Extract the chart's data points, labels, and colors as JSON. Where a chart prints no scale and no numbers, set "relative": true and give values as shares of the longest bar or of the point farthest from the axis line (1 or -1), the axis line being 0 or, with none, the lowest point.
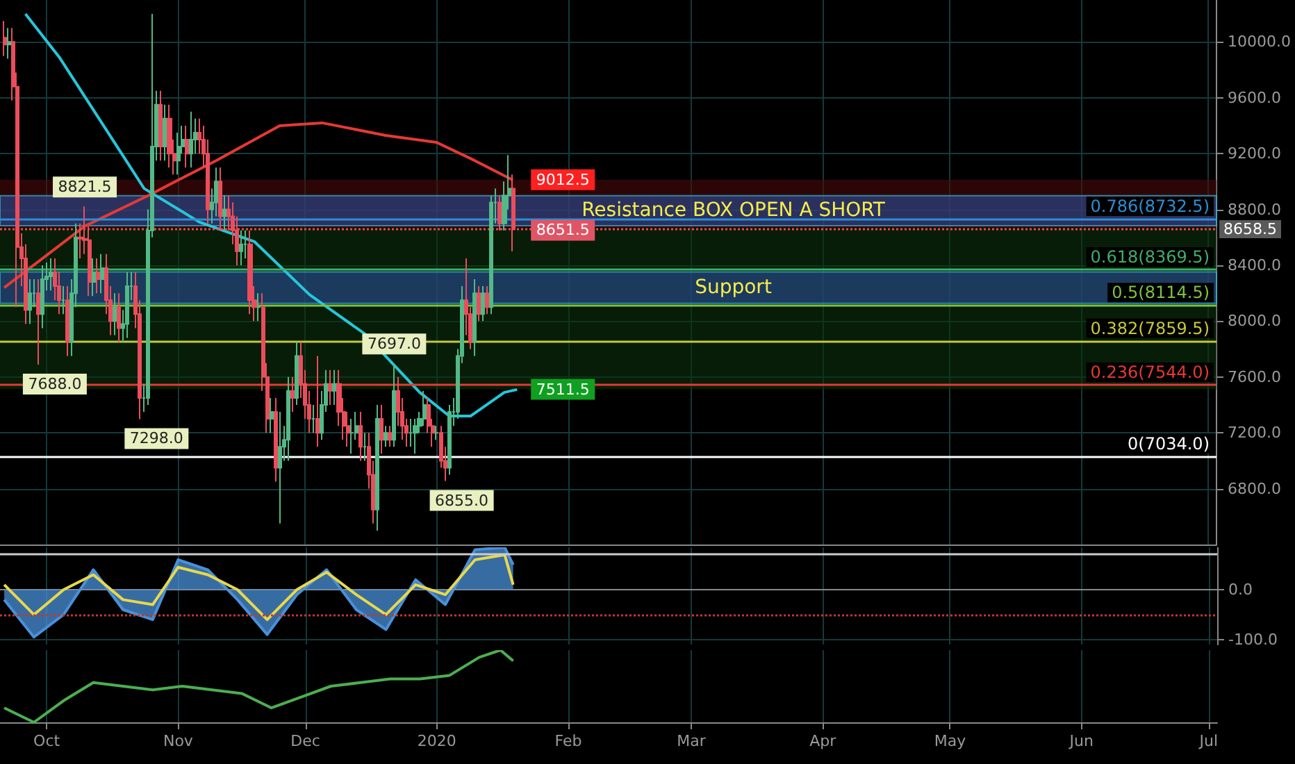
{
  "chart_data": [
    {
      "type": "candlestick",
      "tick_labels": "y",
      "grid": true,
      "xlim": [
        "2019-09-20",
        "2020-07-03"
      ],
      "xticks": [
        {
          "value": "2019-10-01",
          "label": null
        },
        {
          "value": "2019-11-01",
          "label": null
        },
        {
          "value": "2019-12-01",
          "label": null
        },
        {
          "value": "2020-01-01",
          "label": null
        },
        {
          "value": "2020-02-01",
          "label": null
        },
        {
          "value": "2020-03-01",
          "label": null
        },
        {
          "value": "2020-04-01",
          "label": null
        },
        {
          "value": "2020-05-01",
          "label": null
        },
        {
          "value": "2020-06-01",
          "label": null
        },
        {
          "value": "2020-07-01",
          "label": null
        }
      ],
      "ylim": [
        6400,
        10300
      ],
      "yticks": [
        {
          "value": 6800,
          "label": "6800.0"
        },
        {
          "value": 7200,
          "label": "7200.0"
        },
        {
          "value": 7600,
          "label": "7600.0"
        },
        {
          "value": 8000,
          "label": "8000.0"
        },
        {
          "value": 8400,
          "label": "8400.0"
        },
        {
          "value": 8800,
          "label": "8800.0"
        },
        {
          "value": 9200,
          "label": "9200.0"
        },
        {
          "value": 9600,
          "label": "9600.0"
        },
        {
          "value": 10000,
          "label": "10000.0"
        }
      ],
      "series": [
        {
          "type": "candlestick",
          "x": [
            "2019-09-21",
            "2019-09-22",
            "2019-09-23",
            "2019-09-24",
            "2019-09-25",
            "2019-09-26",
            "2019-09-27",
            "2019-09-28",
            "2019-09-29",
            "2019-09-30",
            "2019-10-01",
            "2019-10-02",
            "2019-10-03",
            "2019-10-04",
            "2019-10-05",
            "2019-10-06",
            "2019-10-07",
            "2019-10-08",
            "2019-10-09",
            "2019-10-10",
            "2019-10-11",
            "2019-10-12",
            "2019-10-13",
            "2019-10-14",
            "2019-10-15",
            "2019-10-16",
            "2019-10-17",
            "2019-10-18",
            "2019-10-19",
            "2019-10-20",
            "2019-10-21",
            "2019-10-22",
            "2019-10-23",
            "2019-10-24",
            "2019-10-25",
            "2019-10-26",
            "2019-10-27",
            "2019-10-28",
            "2019-10-29",
            "2019-10-30",
            "2019-10-31",
            "2019-11-01",
            "2019-11-02",
            "2019-11-03",
            "2019-11-04",
            "2019-11-05",
            "2019-11-06",
            "2019-11-07",
            "2019-11-08",
            "2019-11-09",
            "2019-11-10",
            "2019-11-11",
            "2019-11-12",
            "2019-11-13",
            "2019-11-14",
            "2019-11-15",
            "2019-11-16",
            "2019-11-17",
            "2019-11-18",
            "2019-11-19",
            "2019-11-20",
            "2019-11-21",
            "2019-11-22",
            "2019-11-23",
            "2019-11-24",
            "2019-11-25",
            "2019-11-26",
            "2019-11-27",
            "2019-11-28",
            "2019-11-29",
            "2019-11-30",
            "2019-12-01",
            "2019-12-02",
            "2019-12-03",
            "2019-12-04",
            "2019-12-05",
            "2019-12-06",
            "2019-12-07",
            "2019-12-08",
            "2019-12-09",
            "2019-12-10",
            "2019-12-11",
            "2019-12-12",
            "2019-12-13",
            "2019-12-14",
            "2019-12-15",
            "2019-12-16",
            "2019-12-17",
            "2019-12-18",
            "2019-12-19",
            "2019-12-20",
            "2019-12-21",
            "2019-12-22",
            "2019-12-23",
            "2019-12-24",
            "2019-12-25",
            "2019-12-26",
            "2019-12-27",
            "2019-12-28",
            "2019-12-29",
            "2019-12-30",
            "2019-12-31",
            "2020-01-01",
            "2020-01-02",
            "2020-01-03",
            "2020-01-04",
            "2020-01-05",
            "2020-01-06",
            "2020-01-07",
            "2020-01-08",
            "2020-01-09",
            "2020-01-10",
            "2020-01-11",
            "2020-01-12",
            "2020-01-13",
            "2020-01-14",
            "2020-01-15",
            "2020-01-16",
            "2020-01-17",
            "2020-01-18",
            "2020-01-19"
          ],
          "ohlc": [
            [
              10030,
              10150,
              9900,
              9980
            ],
            [
              9980,
              10100,
              9880,
              10000
            ],
            [
              10000,
              10100,
              9580,
              9680
            ],
            [
              9680,
              9780,
              8100,
              8530
            ],
            [
              8530,
              8630,
              8250,
              8450
            ],
            [
              8450,
              8550,
              7980,
              8080
            ],
            [
              8080,
              8300,
              7980,
              8200
            ],
            [
              8200,
              8300,
              8100,
              8200
            ],
            [
              8200,
              8300,
              7688,
              8050
            ],
            [
              8050,
              8400,
              7950,
              8300
            ],
            [
              8300,
              8420,
              8220,
              8320
            ],
            [
              8320,
              8450,
              8220,
              8350
            ],
            [
              8350,
              8450,
              8150,
              8250
            ],
            [
              8250,
              8350,
              8050,
              8150
            ],
            [
              8150,
              8250,
              8050,
              8150
            ],
            [
              8150,
              8250,
              7750,
              7850
            ],
            [
              7850,
              8300,
              7750,
              8200
            ],
            [
              8200,
              8700,
              8100,
              8600
            ],
            [
              8600,
              8700,
              8450,
              8590
            ],
            [
              8590,
              8821.5,
              8480,
              8580
            ],
            [
              8580,
              8680,
              8180,
              8280
            ],
            [
              8280,
              8450,
              8180,
              8350
            ],
            [
              8350,
              8450,
              8200,
              8300
            ],
            [
              8300,
              8480,
              8200,
              8380
            ],
            [
              8380,
              8480,
              8050,
              8150
            ],
            [
              8150,
              8250,
              7900,
              8000
            ],
            [
              8000,
              8200,
              7900,
              8100
            ],
            [
              8100,
              8200,
              7850,
              7950
            ],
            [
              7950,
              8080,
              7850,
              7980
            ],
            [
              7980,
              8350,
              7880,
              8250
            ],
            [
              8250,
              8350,
              8150,
              8250
            ],
            [
              8250,
              8350,
              7950,
              8050
            ],
            [
              8050,
              8150,
              7298,
              7450
            ],
            [
              7450,
              7550,
              7350,
              7450
            ],
            [
              7450,
              8800,
              7400,
              8650
            ],
            [
              8650,
              10200,
              8600,
              9250
            ],
            [
              9250,
              9650,
              9150,
              9550
            ],
            [
              9550,
              9650,
              9150,
              9250
            ],
            [
              9250,
              9550,
              9150,
              9450
            ],
            [
              9450,
              9550,
              9100,
              9200
            ],
            [
              9200,
              9300,
              9050,
              9150
            ],
            [
              9150,
              9350,
              9050,
              9250
            ],
            [
              9250,
              9400,
              9200,
              9300
            ],
            [
              9300,
              9400,
              9100,
              9200
            ],
            [
              9200,
              9500,
              9100,
              9300
            ],
            [
              9300,
              9450,
              9200,
              9350
            ],
            [
              9350,
              9450,
              9200,
              9300
            ],
            [
              9300,
              9400,
              9100,
              9200
            ],
            [
              9200,
              9300,
              8700,
              8800
            ],
            [
              8800,
              8950,
              8700,
              8850
            ],
            [
              8850,
              9100,
              8750,
              9000
            ],
            [
              9000,
              9100,
              8650,
              8750
            ],
            [
              8750,
              8900,
              8650,
              8800
            ],
            [
              8800,
              8900,
              8650,
              8750
            ],
            [
              8750,
              8850,
              8550,
              8650
            ],
            [
              8650,
              8750,
              8400,
              8500
            ],
            [
              8500,
              8650,
              8400,
              8550
            ],
            [
              8550,
              8650,
              8450,
              8550
            ],
            [
              8550,
              8650,
              8050,
              8150
            ],
            [
              8150,
              8250,
              8000,
              8100
            ],
            [
              8100,
              8200,
              8000,
              8100
            ],
            [
              8100,
              8200,
              7500,
              7600
            ],
            [
              7600,
              7700,
              7200,
              7300
            ],
            [
              7300,
              7450,
              7200,
              7350
            ],
            [
              7350,
              7450,
              6850,
              6950
            ],
            [
              6950,
              7350,
              6550,
              7100
            ],
            [
              7100,
              7250,
              7000,
              7150
            ],
            [
              7150,
              7600,
              7000,
              7500
            ],
            [
              7500,
              7600,
              7350,
              7450
            ],
            [
              7450,
              7850,
              7400,
              7750
            ],
            [
              7750,
              7850,
              7450,
              7550
            ],
            [
              7550,
              7650,
              7300,
              7400
            ],
            [
              7400,
              7500,
              7200,
              7300
            ],
            [
              7300,
              7400,
              7200,
              7300
            ],
            [
              7300,
              7750,
              7100,
              7200
            ],
            [
              7200,
              7500,
              7150,
              7400
            ],
            [
              7400,
              7650,
              7350,
              7550
            ],
            [
              7550,
              7650,
              7400,
              7500
            ],
            [
              7500,
              7650,
              7400,
              7550
            ],
            [
              7550,
              7650,
              7250,
              7350
            ],
            [
              7350,
              7450,
              7150,
              7250
            ],
            [
              7250,
              7350,
              7100,
              7200
            ],
            [
              7200,
              7300,
              7050,
              7200
            ],
            [
              7200,
              7350,
              7150,
              7250
            ],
            [
              7250,
              7350,
              7000,
              7100
            ],
            [
              7100,
              7200,
              7000,
              7100
            ],
            [
              7100,
              7200,
              6800,
              6900
            ],
            [
              6900,
              7000,
              6550,
              6650
            ],
            [
              6650,
              7400,
              6500,
              7300
            ],
            [
              7300,
              7400,
              7050,
              7150
            ],
            [
              7150,
              7250,
              7100,
              7200
            ],
            [
              7200,
              7250,
              7100,
              7150
            ],
            [
              7150,
              7697,
              7100,
              7500
            ],
            [
              7500,
              7600,
              7250,
              7350
            ],
            [
              7350,
              7450,
              7150,
              7250
            ],
            [
              7250,
              7300,
              7100,
              7200
            ],
            [
              7200,
              7300,
              7100,
              7200
            ],
            [
              7200,
              7300,
              7050,
              7250
            ],
            [
              7250,
              7350,
              7200,
              7300
            ],
            [
              7300,
              7500,
              7250,
              7400
            ],
            [
              7400,
              7450,
              7200,
              7250
            ],
            [
              7250,
              7300,
              7100,
              7200
            ],
            [
              7200,
              7250,
              7150,
              7200
            ],
            [
              7200,
              7250,
              6950,
              7000
            ],
            [
              7000,
              7100,
              6855,
              6950
            ],
            [
              6950,
              7400,
              6900,
              7350
            ],
            [
              7350,
              7450,
              7250,
              7350
            ],
            [
              7350,
              7800,
              7300,
              7750
            ],
            [
              7750,
              8250,
              7700,
              8150
            ],
            [
              8150,
              8450,
              7900,
              8050
            ],
            [
              8050,
              8100,
              7800,
              7850
            ],
            [
              7850,
              8300,
              7750,
              8200
            ],
            [
              8200,
              8250,
              8000,
              8050
            ],
            [
              8050,
              8250,
              8000,
              8200
            ],
            [
              8200,
              8250,
              8050,
              8100
            ],
            [
              8100,
              8900,
              8050,
              8850
            ],
            [
              8850,
              8950,
              8700,
              8850
            ],
            [
              8850,
              8900,
              8650,
              8700
            ],
            [
              8700,
              9000,
              8650,
              8900
            ],
            [
              8900,
              9190,
              8800,
              8950
            ],
            [
              8950,
              9050,
              8500,
              8658.5
            ]
          ]
        },
        {
          "type": "line",
          "color": "#e53935",
          "x": [
            "2019-09-21",
            "2019-10-10",
            "2019-10-25",
            "2019-11-10",
            "2019-11-25",
            "2019-12-05",
            "2019-12-20",
            "2020-01-01",
            "2020-01-10",
            "2020-01-19"
          ],
          "values": [
            8240,
            8680,
            8900,
            9150,
            9400,
            9420,
            9330,
            9280,
            9150,
            9010
          ]
        },
        {
          "type": "line",
          "color": "#26c6da",
          "x": [
            "2019-09-26",
            "2019-10-04",
            "2019-10-17",
            "2019-10-24",
            "2019-11-06",
            "2019-11-19",
            "2019-12-02",
            "2019-12-15",
            "2019-12-28",
            "2020-01-04",
            "2020-01-09",
            "2020-01-17",
            "2020-01-20"
          ],
          "values": [
            10200,
            9890,
            9280,
            8950,
            8710,
            8570,
            8190,
            7910,
            7490,
            7320,
            7320,
            7490,
            7510
          ]
        }
      ],
      "ref_lines": [
        {
          "axis": "y",
          "value": 8732.5,
          "label": "0.786(8732.5)",
          "color": "#2a8fd6"
        },
        {
          "axis": "y",
          "value": 8369.5,
          "label": "0.618(8369.5)",
          "color": "#3fae6a"
        },
        {
          "axis": "y",
          "value": 8114.5,
          "label": "0.5(8114.5)",
          "color": "#7cc242"
        },
        {
          "axis": "y",
          "value": 7859.5,
          "label": "0.382(7859.5)",
          "color": "#c6c83a"
        },
        {
          "axis": "y",
          "value": 7544,
          "label": "0.236(7544.0)",
          "color": "#e53935"
        },
        {
          "axis": "y",
          "value": 7034,
          "label": "0(7034.0)",
          "color": "#ffffff"
        },
        {
          "axis": "y",
          "value": 8658.5,
          "label": "8658.5",
          "color": "#e05050",
          "line_style": "dotted"
        }
      ],
      "bands": [
        {
          "axis": "y",
          "from": 8658.5,
          "to": 9012.5,
          "color": "#4a0a0a"
        },
        {
          "axis": "y",
          "from": 7511.5,
          "to": 8658.5,
          "color": "#0b300b"
        },
        {
          "axis": "y",
          "from": 8683,
          "to": 8899,
          "label": "Resistance BOX OPEN A SHORT",
          "color": "#2b4f9a"
        },
        {
          "axis": "y",
          "from": 8127,
          "to": 8353,
          "label": "Support",
          "color": "#2b4f9a"
        }
      ],
      "annotations": [
        {
          "text": "8821.5",
          "x": "2019-10-10",
          "y": 8821.5
        },
        {
          "text": "7688.0",
          "x": "2019-09-29",
          "y": 7688
        },
        {
          "text": "7298.0",
          "x": "2019-10-23",
          "y": 7298
        },
        {
          "text": "7697.0",
          "x": "2019-12-22",
          "y": 7697
        },
        {
          "text": "6855.0",
          "x": "2020-01-03",
          "y": 6855
        },
        {
          "text": "9012.5",
          "x": "2020-01-19",
          "y": 9012.5
        },
        {
          "text": "8651.5",
          "x": "2020-01-19",
          "y": 8651.5
        },
        {
          "text": "7511.5",
          "x": "2020-01-19",
          "y": 7511.5
        }
      ]
    },
    {
      "type": "area",
      "tick_labels": "y",
      "grid": true,
      "xlim": [
        "2019-09-20",
        "2020-07-03"
      ],
      "xticks": [
        {
          "value": "2019-10-01",
          "label": null
        },
        {
          "value": "2019-11-01",
          "label": null
        },
        {
          "value": "2019-12-01",
          "label": null
        },
        {
          "value": "2020-01-01",
          "label": null
        },
        {
          "value": "2020-02-01",
          "label": null
        },
        {
          "value": "2020-03-01",
          "label": null
        },
        {
          "value": "2020-04-01",
          "label": null
        },
        {
          "value": "2020-05-01",
          "label": null
        },
        {
          "value": "2020-06-01",
          "label": null
        },
        {
          "value": "2020-07-01",
          "label": null
        }
      ],
      "ylim": [
        -110,
        85
      ],
      "yticks": [
        {
          "value": -100,
          "label": "-100.0"
        },
        {
          "value": 0,
          "label": "0.0"
        }
      ],
      "series": [
        {
          "type": "area",
          "color": "#4a90d9",
          "x": [
            "2019-09-21",
            "2019-09-28",
            "2019-10-05",
            "2019-10-12",
            "2019-10-19",
            "2019-10-26",
            "2019-11-01",
            "2019-11-08",
            "2019-11-15",
            "2019-11-22",
            "2019-11-29",
            "2019-12-06",
            "2019-12-13",
            "2019-12-20",
            "2019-12-27",
            "2020-01-03",
            "2020-01-10",
            "2020-01-17",
            "2020-01-19"
          ],
          "values": [
            -20,
            -95,
            -50,
            40,
            -40,
            -60,
            60,
            40,
            -20,
            -90,
            -10,
            40,
            -40,
            -80,
            20,
            -30,
            80,
            85,
            50
          ]
        },
        {
          "type": "line",
          "color": "#e8d84a",
          "x": [
            "2019-09-21",
            "2019-09-28",
            "2019-10-05",
            "2019-10-12",
            "2019-10-19",
            "2019-10-26",
            "2019-11-01",
            "2019-11-08",
            "2019-11-15",
            "2019-11-22",
            "2019-11-29",
            "2019-12-06",
            "2019-12-13",
            "2019-12-20",
            "2019-12-27",
            "2020-01-03",
            "2020-01-10",
            "2020-01-17",
            "2020-01-19"
          ],
          "values": [
            10,
            -50,
            0,
            30,
            -20,
            -30,
            45,
            30,
            0,
            -60,
            0,
            35,
            -10,
            -50,
            10,
            -10,
            60,
            70,
            10
          ]
        }
      ],
      "ref_lines": [
        {
          "axis": "y",
          "value": 71,
          "color": "#cccccc"
        },
        {
          "axis": "y",
          "value": -50,
          "color": "#c0392b",
          "line_style": "dotted"
        }
      ]
    },
    {
      "type": "line",
      "relative": true,
      "tick_labels": "x",
      "grid": "x",
      "xlim": [
        "2019-09-20",
        "2020-07-03"
      ],
      "xticks": [
        {
          "value": "2019-10-01",
          "label": "Oct"
        },
        {
          "value": "2019-11-01",
          "label": "Nov"
        },
        {
          "value": "2019-12-01",
          "label": "Dec"
        },
        {
          "value": "2020-01-01",
          "label": "2020"
        },
        {
          "value": "2020-02-01",
          "label": "Feb"
        },
        {
          "value": "2020-03-01",
          "label": "Mar"
        },
        {
          "value": "2020-04-01",
          "label": "Apr"
        },
        {
          "value": "2020-05-01",
          "label": "May"
        },
        {
          "value": "2020-06-01",
          "label": "Jun"
        },
        {
          "value": "2020-07-01",
          "label": "Jul"
        }
      ],
      "series": [
        {
          "type": "line",
          "color": "#4caf50",
          "x": [
            "2019-09-21",
            "2019-09-28",
            "2019-10-05",
            "2019-10-12",
            "2019-10-19",
            "2019-10-26",
            "2019-11-02",
            "2019-11-09",
            "2019-11-16",
            "2019-11-23",
            "2019-11-30",
            "2019-12-07",
            "2019-12-14",
            "2019-12-21",
            "2019-12-28",
            "2020-01-04",
            "2020-01-11",
            "2020-01-16",
            "2020-01-19"
          ],
          "values": [
            0.2,
            0,
            0.3,
            0.55,
            0.5,
            0.45,
            0.5,
            0.45,
            0.4,
            0.2,
            0.35,
            0.5,
            0.55,
            0.6,
            0.6,
            0.65,
            0.9,
            1,
            0.85
          ]
        }
      ]
    }
  ]
}
